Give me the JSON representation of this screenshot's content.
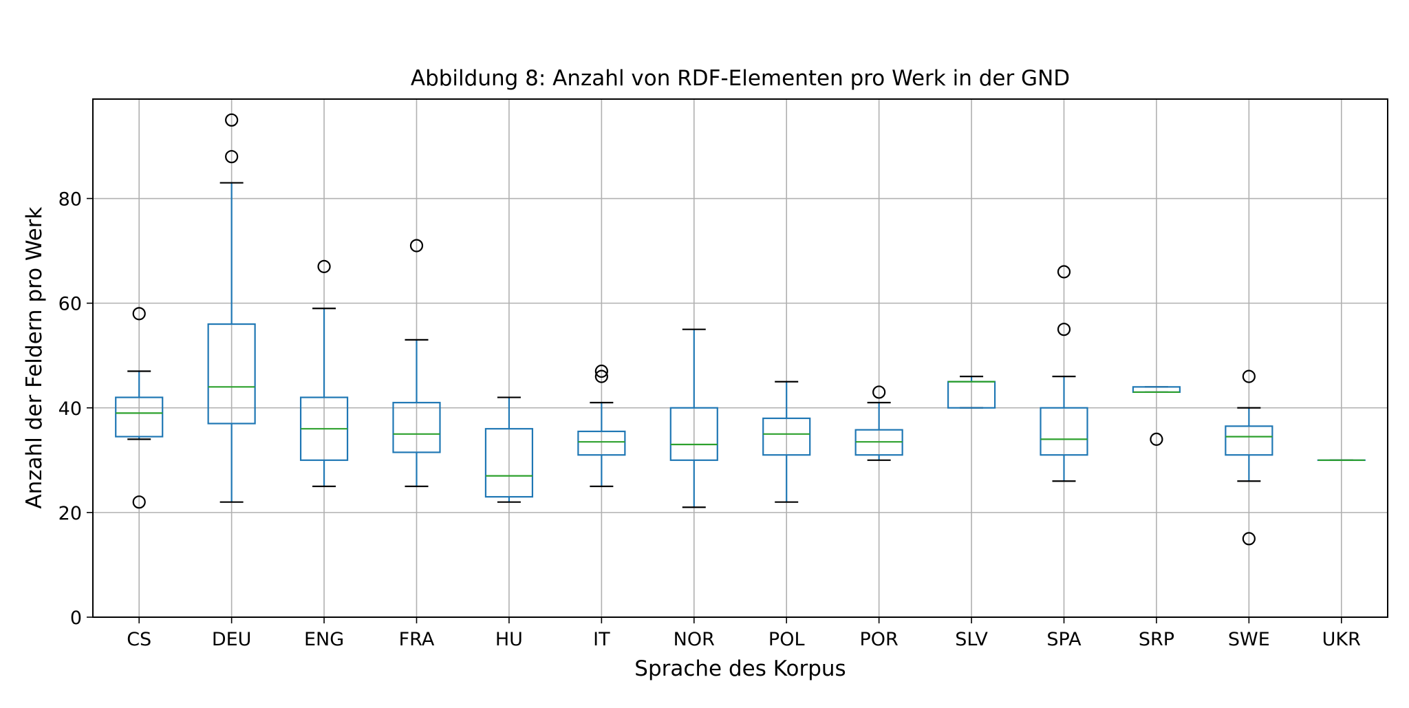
{
  "chart_data": {
    "type": "box",
    "title": "Abbildung 8: Anzahl von RDF-Elementen pro Werk in der GND",
    "xlabel": "Sprache des Korpus",
    "ylabel": "Anzahl der Feldern pro Werk",
    "ylim": [
      0,
      99
    ],
    "yticks": [
      0,
      20,
      40,
      60,
      80
    ],
    "grid": true,
    "colors": {
      "box": "#1f77b4",
      "median": "#2ca02c",
      "cap": "#000000",
      "grid": "#b0b0b0",
      "flier": "#000000"
    },
    "categories": [
      "CS",
      "DEU",
      "ENG",
      "FRA",
      "HU",
      "IT",
      "NOR",
      "POL",
      "POR",
      "SLV",
      "SPA",
      "SRP",
      "SWE",
      "UKR"
    ],
    "boxes": [
      {
        "label": "CS",
        "whislo": 34,
        "q1": 34.5,
        "med": 39,
        "q3": 42,
        "whishi": 47,
        "fliers": [
          22,
          58
        ]
      },
      {
        "label": "DEU",
        "whislo": 22,
        "q1": 37,
        "med": 44,
        "q3": 56,
        "whishi": 83,
        "fliers": [
          88,
          95
        ]
      },
      {
        "label": "ENG",
        "whislo": 25,
        "q1": 30,
        "med": 36,
        "q3": 42,
        "whishi": 59,
        "fliers": [
          67
        ]
      },
      {
        "label": "FRA",
        "whislo": 25,
        "q1": 31.5,
        "med": 35,
        "q3": 41,
        "whishi": 53,
        "fliers": [
          71
        ]
      },
      {
        "label": "HU",
        "whislo": 22,
        "q1": 23,
        "med": 27,
        "q3": 36,
        "whishi": 42,
        "fliers": []
      },
      {
        "label": "IT",
        "whislo": 25,
        "q1": 31,
        "med": 33.5,
        "q3": 35.5,
        "whishi": 41,
        "fliers": [
          46,
          47
        ]
      },
      {
        "label": "NOR",
        "whislo": 21,
        "q1": 30,
        "med": 33,
        "q3": 40,
        "whishi": 55,
        "fliers": []
      },
      {
        "label": "POL",
        "whislo": 22,
        "q1": 31,
        "med": 35,
        "q3": 38,
        "whishi": 45,
        "fliers": []
      },
      {
        "label": "POR",
        "whislo": 30,
        "q1": 31,
        "med": 33.5,
        "q3": 35.8,
        "whishi": 41,
        "fliers": [
          43
        ]
      },
      {
        "label": "SLV",
        "whislo": 40,
        "q1": 40,
        "med": 45,
        "q3": 45,
        "whishi": 46,
        "fliers": []
      },
      {
        "label": "SPA",
        "whislo": 26,
        "q1": 31,
        "med": 34,
        "q3": 40,
        "whishi": 46,
        "fliers": [
          55,
          66
        ]
      },
      {
        "label": "SRP",
        "whislo": 43,
        "q1": 43,
        "med": 43,
        "q3": 44,
        "whishi": 44,
        "fliers": [
          34
        ]
      },
      {
        "label": "SWE",
        "whislo": 26,
        "q1": 31,
        "med": 34.5,
        "q3": 36.5,
        "whishi": 40,
        "fliers": [
          15,
          46
        ]
      },
      {
        "label": "UKR",
        "whislo": 30,
        "q1": 30,
        "med": 30,
        "q3": 30,
        "whishi": 30,
        "fliers": []
      }
    ]
  }
}
